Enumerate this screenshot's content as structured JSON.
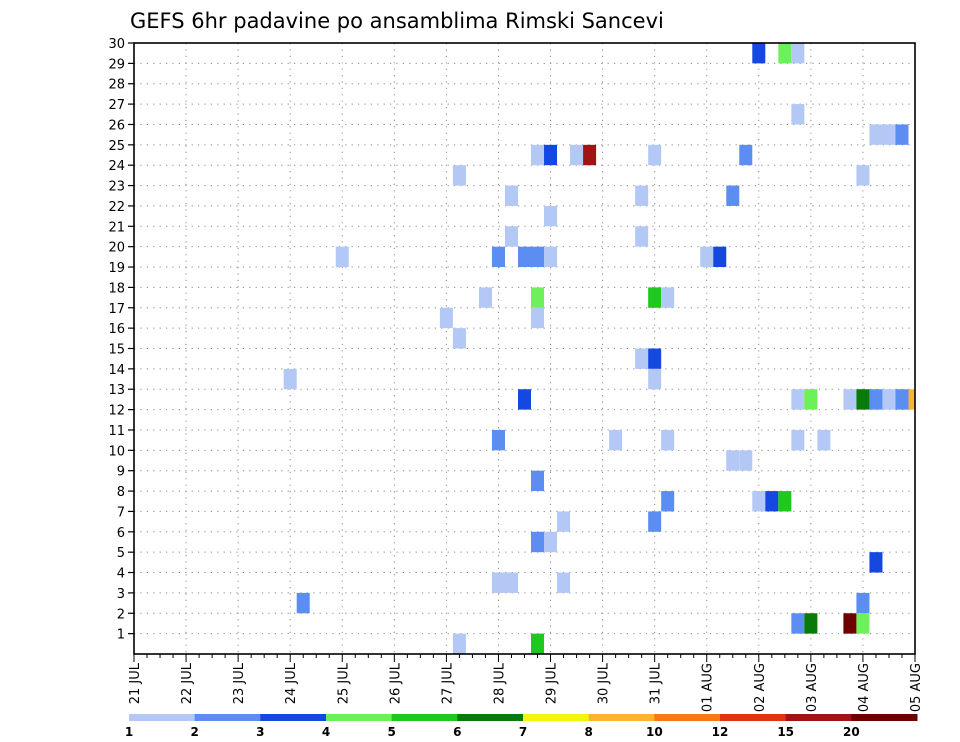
{
  "chart_data": {
    "type": "heatmap",
    "title": "GEFS 6hr padavine po ansamblima Rimski Sancevi",
    "x_tick_labels": [
      "21 JUL",
      "22 JUL",
      "23 JUL",
      "24 JUL",
      "25 JUL",
      "26 JUL",
      "27 JUL",
      "28 JUL",
      "29 JUL",
      "30 JUL",
      "31 JUL",
      "01 AUG",
      "02 AUG",
      "03 AUG",
      "04 AUG",
      "05 AUG"
    ],
    "y_tick_labels": [
      "1",
      "2",
      "3",
      "4",
      "5",
      "6",
      "7",
      "8",
      "9",
      "10",
      "11",
      "12",
      "13",
      "14",
      "15",
      "16",
      "17",
      "18",
      "19",
      "20",
      "21",
      "22",
      "23",
      "24",
      "25",
      "26",
      "27",
      "28",
      "29",
      "30"
    ],
    "xlim": [
      0,
      60
    ],
    "ylim": [
      0,
      30
    ],
    "x_step_hours": 6,
    "grid": true,
    "colorbar": {
      "position": "bottom",
      "labels": [
        "1",
        "2",
        "3",
        "4",
        "5",
        "6",
        "7",
        "8",
        "10",
        "12",
        "15",
        "20"
      ],
      "colors": [
        "#b4c8f6",
        "#5b8ef0",
        "#1448e0",
        "#6ef05a",
        "#1ec81e",
        "#0a7a0a",
        "#f5f50a",
        "#fab432",
        "#f57a14",
        "#e13214",
        "#a01414",
        "#6e0000"
      ]
    },
    "cells": [
      {
        "x": 48,
        "y": 29,
        "c": 2
      },
      {
        "x": 50,
        "y": 29,
        "c": 3
      },
      {
        "x": 51,
        "y": 29,
        "c": 0
      },
      {
        "x": 51,
        "y": 26,
        "c": 0
      },
      {
        "x": 57,
        "y": 25,
        "c": 0
      },
      {
        "x": 58,
        "y": 25,
        "c": 0
      },
      {
        "x": 59,
        "y": 25,
        "c": 1
      },
      {
        "x": 31,
        "y": 24,
        "c": 0
      },
      {
        "x": 32,
        "y": 24,
        "c": 2
      },
      {
        "x": 34,
        "y": 24,
        "c": 0
      },
      {
        "x": 35,
        "y": 24,
        "c": 10
      },
      {
        "x": 40,
        "y": 24,
        "c": 0
      },
      {
        "x": 47,
        "y": 24,
        "c": 1
      },
      {
        "x": 25,
        "y": 23,
        "c": 0
      },
      {
        "x": 56,
        "y": 23,
        "c": 0
      },
      {
        "x": 29,
        "y": 22,
        "c": 0
      },
      {
        "x": 39,
        "y": 22,
        "c": 0
      },
      {
        "x": 46,
        "y": 22,
        "c": 1
      },
      {
        "x": 32,
        "y": 21,
        "c": 0
      },
      {
        "x": 29,
        "y": 20,
        "c": 0
      },
      {
        "x": 39,
        "y": 20,
        "c": 0
      },
      {
        "x": 16,
        "y": 19,
        "c": 0
      },
      {
        "x": 28,
        "y": 19,
        "c": 1
      },
      {
        "x": 30,
        "y": 19,
        "c": 1
      },
      {
        "x": 31,
        "y": 19,
        "c": 1
      },
      {
        "x": 32,
        "y": 19,
        "c": 0
      },
      {
        "x": 44,
        "y": 19,
        "c": 0
      },
      {
        "x": 45,
        "y": 19,
        "c": 2
      },
      {
        "x": 27,
        "y": 17,
        "c": 0
      },
      {
        "x": 31,
        "y": 17,
        "c": 3
      },
      {
        "x": 40,
        "y": 17,
        "c": 4
      },
      {
        "x": 41,
        "y": 17,
        "c": 0
      },
      {
        "x": 24,
        "y": 16,
        "c": 0
      },
      {
        "x": 31,
        "y": 16,
        "c": 0
      },
      {
        "x": 25,
        "y": 15,
        "c": 0
      },
      {
        "x": 39,
        "y": 14,
        "c": 0
      },
      {
        "x": 40,
        "y": 14,
        "c": 2
      },
      {
        "x": 12,
        "y": 13,
        "c": 0
      },
      {
        "x": 40,
        "y": 13,
        "c": 0
      },
      {
        "x": 30,
        "y": 12,
        "c": 2
      },
      {
        "x": 51,
        "y": 12,
        "c": 0
      },
      {
        "x": 52,
        "y": 12,
        "c": 3
      },
      {
        "x": 55,
        "y": 12,
        "c": 0
      },
      {
        "x": 56,
        "y": 12,
        "c": 5
      },
      {
        "x": 57,
        "y": 12,
        "c": 1
      },
      {
        "x": 58,
        "y": 12,
        "c": 0
      },
      {
        "x": 59,
        "y": 12,
        "c": 1
      },
      {
        "x": 60,
        "y": 12,
        "c": 7
      },
      {
        "x": 28,
        "y": 10,
        "c": 1
      },
      {
        "x": 37,
        "y": 10,
        "c": 0
      },
      {
        "x": 41,
        "y": 10,
        "c": 0
      },
      {
        "x": 51,
        "y": 10,
        "c": 0
      },
      {
        "x": 53,
        "y": 10,
        "c": 0
      },
      {
        "x": 46,
        "y": 9,
        "c": 0
      },
      {
        "x": 47,
        "y": 9,
        "c": 0
      },
      {
        "x": 31,
        "y": 8,
        "c": 1
      },
      {
        "x": 41,
        "y": 7,
        "c": 1
      },
      {
        "x": 48,
        "y": 7,
        "c": 0
      },
      {
        "x": 49,
        "y": 7,
        "c": 2
      },
      {
        "x": 50,
        "y": 7,
        "c": 4
      },
      {
        "x": 33,
        "y": 6,
        "c": 0
      },
      {
        "x": 40,
        "y": 6,
        "c": 1
      },
      {
        "x": 31,
        "y": 5,
        "c": 1
      },
      {
        "x": 32,
        "y": 5,
        "c": 0
      },
      {
        "x": 57,
        "y": 4,
        "c": 2
      },
      {
        "x": 28,
        "y": 3,
        "c": 0
      },
      {
        "x": 29,
        "y": 3,
        "c": 0
      },
      {
        "x": 33,
        "y": 3,
        "c": 0
      },
      {
        "x": 13,
        "y": 2,
        "c": 1
      },
      {
        "x": 56,
        "y": 2,
        "c": 1
      },
      {
        "x": 51,
        "y": 1,
        "c": 1
      },
      {
        "x": 52,
        "y": 1,
        "c": 5
      },
      {
        "x": 55,
        "y": 1,
        "c": 11
      },
      {
        "x": 56,
        "y": 1,
        "c": 3
      },
      {
        "x": 25,
        "y": 0,
        "c": 0
      },
      {
        "x": 31,
        "y": 0,
        "c": 4
      }
    ]
  }
}
